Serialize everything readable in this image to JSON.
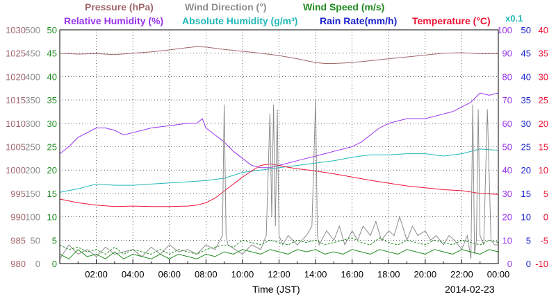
{
  "chart_data": {
    "type": "line",
    "legend": {
      "row1": [
        {
          "text": "Pressure (hPa)",
          "color": "#a0666a"
        },
        {
          "text": "Wind Direction (°)",
          "color": "#8c8c8c"
        },
        {
          "text": "Wind Speed (m/s)",
          "color": "#1f8c1f"
        }
      ],
      "row2": [
        {
          "text": "Relative Humidity (%)",
          "color": "#9933ee"
        },
        {
          "text": "Absolute Humidity (g/m³)",
          "color": "#22b8b8"
        },
        {
          "text": "Rain Rate(mm/h)",
          "color": "#1a22cc"
        },
        {
          "text": "Temperature (°C)",
          "color": "#ee1133"
        }
      ],
      "scale_note": {
        "text": "x0.1",
        "color": "#22b8b8"
      }
    },
    "xlabel": "Time (JST)",
    "date_label": "2014-02-23",
    "x_ticks": [
      "02:00",
      "04:00",
      "06:00",
      "08:00",
      "10:00",
      "12:00",
      "14:00",
      "16:00",
      "18:00",
      "20:00",
      "22:00",
      "00:00"
    ],
    "xlim_hours": [
      0,
      24
    ],
    "grid": true,
    "axes": {
      "pressure": {
        "color": "#a0666a",
        "min": 980,
        "max": 1030,
        "ticks": [
          "1030",
          "1025",
          "1020",
          "1015",
          "1010",
          "1005",
          "1000",
          "995",
          "990",
          "985",
          "980"
        ]
      },
      "wind_direction": {
        "color": "#8c8c8c",
        "min": 0,
        "max": 500,
        "ticks": [
          "500",
          "450",
          "400",
          "350",
          "300",
          "250",
          "200",
          "150",
          "100",
          "50",
          "0"
        ]
      },
      "wind_speed": {
        "color": "#1f8c1f",
        "min": 0,
        "max": 50,
        "ticks": [
          "50",
          "45",
          "40",
          "35",
          "30",
          "25",
          "20",
          "15",
          "10",
          "5",
          "0"
        ]
      },
      "humidity": {
        "color": "#9933ee",
        "min": 0,
        "max": 100,
        "ticks": [
          "100",
          "90",
          "80",
          "70",
          "60",
          "50",
          "40",
          "30",
          "20",
          "10",
          "0"
        ]
      },
      "rain_rate": {
        "color": "#1a22cc",
        "min": 0,
        "max": 50,
        "ticks": [
          "50",
          "45",
          "40",
          "35",
          "30",
          "25",
          "20",
          "15",
          "10",
          "5",
          "0"
        ]
      },
      "temperature": {
        "color": "#ee1133",
        "min": -10,
        "max": 40,
        "ticks": [
          "40",
          "35",
          "30",
          "25",
          "20",
          "15",
          "10",
          "5",
          "0",
          "-5",
          "-10"
        ]
      }
    },
    "series": [
      {
        "name": "Pressure",
        "axis": "pressure",
        "color": "#a0666a",
        "x": [
          0,
          1,
          2,
          3,
          4,
          5,
          6,
          7,
          7.5,
          8,
          9,
          10,
          11,
          12,
          13,
          14,
          14.5,
          15,
          16,
          17,
          18,
          19,
          20,
          21,
          22,
          23,
          24
        ],
        "y": [
          1025.0,
          1024.8,
          1024.9,
          1024.7,
          1025.0,
          1025.3,
          1025.7,
          1026.2,
          1026.4,
          1026.3,
          1025.8,
          1025.4,
          1025.0,
          1024.5,
          1023.8,
          1023.0,
          1022.8,
          1022.8,
          1023.0,
          1023.4,
          1023.8,
          1024.2,
          1024.6,
          1025.0,
          1025.1,
          1024.9,
          1024.9
        ]
      },
      {
        "name": "Relative Humidity",
        "axis": "humidity",
        "color": "#9933ee",
        "x": [
          0,
          0.5,
          1,
          1.5,
          2,
          2.5,
          3,
          3.5,
          4,
          5,
          6,
          7,
          7.5,
          7.8,
          8,
          8.5,
          9,
          9.5,
          10,
          10.5,
          11,
          11.5,
          12,
          12.5,
          13,
          13.5,
          14,
          14.5,
          15,
          15.5,
          16,
          16.5,
          17,
          17.5,
          18,
          18.5,
          19,
          19.5,
          20,
          20.5,
          21,
          21.5,
          22,
          22.5,
          23,
          23.5,
          24
        ],
        "y": [
          47,
          50,
          54,
          56,
          58,
          58,
          57,
          55,
          56,
          58,
          59,
          60,
          60,
          62,
          58,
          55,
          52,
          48,
          45,
          42,
          41,
          41,
          42,
          43,
          44,
          45,
          46,
          47,
          48,
          49,
          50,
          52,
          55,
          58,
          60,
          61,
          62,
          62,
          62,
          63,
          64,
          65,
          67,
          69,
          73,
          72,
          73
        ]
      },
      {
        "name": "Absolute Humidity",
        "axis": "humidity",
        "color": "#22b8b8",
        "x": [
          0,
          1,
          2,
          3,
          4,
          5,
          6,
          7,
          8,
          9,
          10,
          11,
          12,
          13,
          14,
          15,
          16,
          17,
          18,
          19,
          20,
          21,
          22,
          23,
          24
        ],
        "y": [
          30.5,
          32,
          34,
          33.5,
          33.5,
          34,
          34.5,
          35,
          35.5,
          36.5,
          39,
          40,
          41,
          42,
          43,
          44,
          45.5,
          46.5,
          46.5,
          47,
          47,
          46,
          47,
          49,
          48.5
        ]
      },
      {
        "name": "Temperature",
        "axis": "temperature",
        "color": "#ee1133",
        "x": [
          0,
          1,
          2,
          3,
          4,
          5,
          6,
          7,
          7.5,
          8,
          8.5,
          9,
          9.5,
          10,
          10.5,
          11,
          11.5,
          12,
          12.5,
          13,
          14,
          15,
          16,
          17,
          18,
          19,
          20,
          21,
          22,
          23,
          24
        ],
        "y": [
          3.8,
          3.0,
          2.5,
          2.2,
          2.3,
          2.2,
          2.2,
          2.3,
          2.5,
          3.0,
          4.0,
          5.5,
          7.0,
          8.5,
          9.8,
          11.0,
          11.3,
          11.0,
          10.6,
          10.3,
          9.8,
          9.2,
          8.5,
          7.8,
          7.2,
          6.6,
          6.2,
          5.8,
          5.6,
          5.0,
          4.8
        ]
      },
      {
        "name": "Wind Direction",
        "axis": "wind_direction",
        "color": "#8c8c8c",
        "x": [
          0,
          0.5,
          1,
          1.5,
          2,
          2.5,
          3,
          3.5,
          4,
          4.5,
          5,
          5.5,
          6,
          6.5,
          7,
          7.5,
          8,
          8.5,
          8.9,
          9.0,
          9.1,
          9.2,
          9.6,
          10,
          10.5,
          11,
          11.3,
          11.5,
          11.6,
          11.7,
          11.8,
          11.9,
          12,
          12.2,
          12.5,
          13,
          13.5,
          13.8,
          14.0,
          14.1,
          14.2,
          14.6,
          15,
          15.3,
          15.6,
          16,
          16.3,
          16.6,
          17,
          17.3,
          17.6,
          18,
          18.3,
          18.6,
          19,
          19.3,
          19.6,
          20,
          20.3,
          20.6,
          21,
          21.3,
          21.6,
          22,
          22.3,
          22.5,
          22.6,
          22.7,
          22.8,
          22.9,
          23.0,
          23.2,
          23.4,
          23.6,
          23.8,
          24
        ],
        "y": [
          10,
          40,
          20,
          30,
          15,
          35,
          20,
          25,
          30,
          15,
          35,
          20,
          40,
          25,
          30,
          20,
          40,
          30,
          60,
          340,
          60,
          40,
          30,
          20,
          40,
          30,
          60,
          320,
          100,
          340,
          80,
          330,
          60,
          40,
          60,
          40,
          60,
          80,
          350,
          60,
          40,
          70,
          50,
          80,
          40,
          70,
          50,
          80,
          60,
          90,
          50,
          70,
          60,
          100,
          50,
          80,
          60,
          70,
          50,
          60,
          40,
          60,
          50,
          30,
          60,
          10,
          340,
          20,
          50,
          330,
          60,
          40,
          330,
          50,
          40,
          40
        ]
      },
      {
        "name": "Wind Speed",
        "axis": "wind_speed",
        "color": "#1f8c1f",
        "x": [
          0,
          0.5,
          1,
          1.5,
          2,
          2.5,
          3,
          3.5,
          4,
          4.5,
          5,
          5.5,
          6,
          6.5,
          7,
          7.5,
          8,
          8.5,
          9,
          9.5,
          10,
          10.5,
          11,
          11.5,
          12,
          12.5,
          13,
          13.5,
          14,
          14.5,
          15,
          15.5,
          16,
          16.5,
          17,
          17.5,
          18,
          18.5,
          19,
          19.5,
          20,
          20.5,
          21,
          21.5,
          22,
          22.5,
          23,
          23.5,
          24
        ],
        "y": [
          2,
          1,
          3,
          1.5,
          2,
          1,
          2.5,
          1,
          2,
          1.5,
          1,
          2,
          1,
          2,
          1.5,
          1,
          2,
          1.5,
          2.5,
          2,
          3,
          2.5,
          2,
          3,
          2.5,
          2,
          3,
          2.5,
          3,
          2,
          2.5,
          2,
          3,
          2.5,
          2,
          3,
          2.5,
          2,
          3,
          2.5,
          2,
          3,
          2.5,
          2,
          3,
          2.5,
          2,
          3,
          2.5
        ]
      },
      {
        "name": "Wind Speed (gust)",
        "axis": "wind_speed",
        "color": "#1f8c1f",
        "dashed": true,
        "x": [
          0,
          0.5,
          1,
          1.5,
          2,
          2.5,
          3,
          3.5,
          4,
          4.5,
          5,
          5.5,
          6,
          6.5,
          7,
          7.5,
          8,
          8.5,
          9,
          9.5,
          10,
          10.5,
          11,
          11.5,
          12,
          12.5,
          13,
          13.5,
          14,
          14.5,
          15,
          15.5,
          16,
          16.5,
          17,
          17.5,
          18,
          18.5,
          19,
          19.5,
          20,
          20.5,
          21,
          21.5,
          22,
          22.5,
          23,
          23.5,
          24
        ],
        "y": [
          4,
          3,
          3.5,
          2.5,
          3,
          2,
          3.5,
          2,
          3,
          2.5,
          2,
          3,
          2,
          3,
          2.5,
          2,
          3,
          3.5,
          4,
          3.5,
          5,
          4.5,
          4,
          5,
          4.5,
          4,
          5,
          4.5,
          5,
          4,
          4.5,
          5,
          5.5,
          4.5,
          4,
          5.5,
          4.5,
          4,
          5,
          4.5,
          4,
          5,
          4.5,
          4,
          5,
          4.5,
          4,
          5,
          4.5
        ]
      },
      {
        "name": "Rain Rate",
        "axis": "rain_rate",
        "color": "#1a22cc",
        "x": [
          0,
          24
        ],
        "y": [
          0,
          0
        ]
      }
    ]
  }
}
